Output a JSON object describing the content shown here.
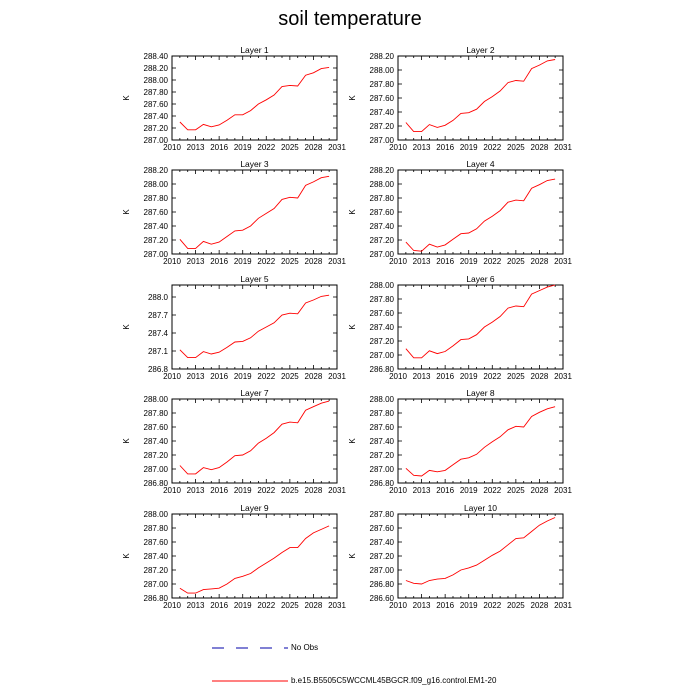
{
  "title": "soil temperature",
  "legend": {
    "obs_label": "No Obs",
    "model_label": "b.e15.B5505C5WCCML45BGCR.f09_g16.control.EM1-20",
    "model_color": "#ff0000",
    "obs_color": "#0000aa"
  },
  "chart_data": [
    {
      "type": "line",
      "title": "Layer 1",
      "ylabel": "K",
      "xlim": [
        2010,
        2031
      ],
      "xticks": [
        "2010",
        "2013",
        "2016",
        "2019",
        "2022",
        "2025",
        "2028",
        "2031"
      ],
      "ylim": [
        287.0,
        288.4
      ],
      "yticks": [
        "287.00",
        "287.20",
        "287.40",
        "287.60",
        "287.80",
        "288.00",
        "288.20",
        "288.40"
      ],
      "x": [
        2011,
        2012,
        2013,
        2014,
        2015,
        2016,
        2017,
        2018,
        2019,
        2020,
        2021,
        2022,
        2023,
        2024,
        2025,
        2026,
        2027,
        2028,
        2029,
        2030
      ],
      "series": [
        {
          "values": [
            287.3,
            287.17,
            287.17,
            287.26,
            287.22,
            287.25,
            287.33,
            287.42,
            287.42,
            287.49,
            287.6,
            287.67,
            287.75,
            287.89,
            287.91,
            287.9,
            288.08,
            288.12,
            288.19,
            288.21
          ]
        }
      ]
    },
    {
      "type": "line",
      "title": "Layer 2",
      "ylabel": "K",
      "xlim": [
        2010,
        2031
      ],
      "xticks": [
        "2010",
        "2013",
        "2016",
        "2019",
        "2022",
        "2025",
        "2028",
        "2031"
      ],
      "ylim": [
        287.0,
        288.2
      ],
      "yticks": [
        "287.00",
        "287.20",
        "287.40",
        "287.60",
        "287.80",
        "288.00",
        "288.20"
      ],
      "x": [
        2011,
        2012,
        2013,
        2014,
        2015,
        2016,
        2017,
        2018,
        2019,
        2020,
        2021,
        2022,
        2023,
        2024,
        2025,
        2026,
        2027,
        2028,
        2029,
        2030
      ],
      "series": [
        {
          "values": [
            287.25,
            287.12,
            287.12,
            287.22,
            287.18,
            287.21,
            287.28,
            287.38,
            287.39,
            287.44,
            287.55,
            287.62,
            287.7,
            287.82,
            287.85,
            287.84,
            288.02,
            288.07,
            288.13,
            288.15
          ]
        }
      ]
    },
    {
      "type": "line",
      "title": "Layer 3",
      "ylabel": "K",
      "xlim": [
        2010,
        2031
      ],
      "xticks": [
        "2010",
        "2013",
        "2016",
        "2019",
        "2022",
        "2025",
        "2028",
        "2031"
      ],
      "ylim": [
        287.0,
        288.2
      ],
      "yticks": [
        "287.00",
        "287.20",
        "287.40",
        "287.60",
        "287.80",
        "288.00",
        "288.20"
      ],
      "x": [
        2011,
        2012,
        2013,
        2014,
        2015,
        2016,
        2017,
        2018,
        2019,
        2020,
        2021,
        2022,
        2023,
        2024,
        2025,
        2026,
        2027,
        2028,
        2029,
        2030
      ],
      "series": [
        {
          "values": [
            287.21,
            287.08,
            287.08,
            287.18,
            287.14,
            287.17,
            287.25,
            287.33,
            287.34,
            287.4,
            287.51,
            287.58,
            287.65,
            287.78,
            287.81,
            287.8,
            287.98,
            288.03,
            288.09,
            288.11
          ]
        }
      ]
    },
    {
      "type": "line",
      "title": "Layer 4",
      "ylabel": "K",
      "xlim": [
        2010,
        2031
      ],
      "xticks": [
        "2010",
        "2013",
        "2016",
        "2019",
        "2022",
        "2025",
        "2028",
        "2031"
      ],
      "ylim": [
        287.0,
        288.2
      ],
      "yticks": [
        "287.00",
        "287.20",
        "287.40",
        "287.60",
        "287.80",
        "288.00",
        "288.20"
      ],
      "x": [
        2011,
        2012,
        2013,
        2014,
        2015,
        2016,
        2017,
        2018,
        2019,
        2020,
        2021,
        2022,
        2023,
        2024,
        2025,
        2026,
        2027,
        2028,
        2029,
        2030
      ],
      "series": [
        {
          "values": [
            287.17,
            287.05,
            287.04,
            287.14,
            287.1,
            287.13,
            287.21,
            287.29,
            287.3,
            287.36,
            287.47,
            287.54,
            287.62,
            287.74,
            287.77,
            287.76,
            287.94,
            287.99,
            288.05,
            288.07
          ]
        }
      ]
    },
    {
      "type": "line",
      "title": "Layer 5",
      "ylabel": "K",
      "xlim": [
        2010,
        2031
      ],
      "xticks": [
        "2010",
        "2013",
        "2016",
        "2019",
        "2022",
        "2025",
        "2028",
        "2031"
      ],
      "ylim": [
        286.8,
        288.2
      ],
      "yticks": [
        "286.8",
        "287.1",
        "287.4",
        "287.7",
        "288.0"
      ],
      "yticks_values": [
        286.8,
        287.1,
        287.4,
        287.7,
        288.0
      ],
      "x": [
        2011,
        2012,
        2013,
        2014,
        2015,
        2016,
        2017,
        2018,
        2019,
        2020,
        2021,
        2022,
        2023,
        2024,
        2025,
        2026,
        2027,
        2028,
        2029,
        2030
      ],
      "series": [
        {
          "values": [
            287.12,
            286.99,
            286.99,
            287.09,
            287.05,
            287.08,
            287.16,
            287.25,
            287.26,
            287.32,
            287.43,
            287.5,
            287.57,
            287.7,
            287.73,
            287.72,
            287.9,
            287.95,
            288.01,
            288.03
          ]
        }
      ]
    },
    {
      "type": "line",
      "title": "Layer 6",
      "ylabel": "K",
      "xlim": [
        2010,
        2031
      ],
      "xticks": [
        "2010",
        "2013",
        "2016",
        "2019",
        "2022",
        "2025",
        "2028",
        "2031"
      ],
      "ylim": [
        286.8,
        288.0
      ],
      "yticks": [
        "286.80",
        "287.00",
        "287.20",
        "287.40",
        "287.60",
        "287.80",
        "288.00"
      ],
      "x": [
        2011,
        2012,
        2013,
        2014,
        2015,
        2016,
        2017,
        2018,
        2019,
        2020,
        2021,
        2022,
        2023,
        2024,
        2025,
        2026,
        2027,
        2028,
        2029,
        2030
      ],
      "series": [
        {
          "values": [
            287.09,
            286.96,
            286.96,
            287.06,
            287.02,
            287.05,
            287.13,
            287.22,
            287.23,
            287.29,
            287.4,
            287.47,
            287.55,
            287.67,
            287.7,
            287.69,
            287.87,
            287.92,
            287.97,
            288.0
          ]
        }
      ]
    },
    {
      "type": "line",
      "title": "Layer 7",
      "ylabel": "K",
      "xlim": [
        2010,
        2031
      ],
      "xticks": [
        "2010",
        "2013",
        "2016",
        "2019",
        "2022",
        "2025",
        "2028",
        "2031"
      ],
      "ylim": [
        286.8,
        288.0
      ],
      "yticks": [
        "286.80",
        "287.00",
        "287.20",
        "287.40",
        "287.60",
        "287.80",
        "288.00"
      ],
      "x": [
        2011,
        2012,
        2013,
        2014,
        2015,
        2016,
        2017,
        2018,
        2019,
        2020,
        2021,
        2022,
        2023,
        2024,
        2025,
        2026,
        2027,
        2028,
        2029,
        2030
      ],
      "series": [
        {
          "values": [
            287.05,
            286.93,
            286.93,
            287.02,
            286.99,
            287.02,
            287.1,
            287.19,
            287.2,
            287.26,
            287.37,
            287.44,
            287.52,
            287.64,
            287.67,
            287.66,
            287.84,
            287.89,
            287.94,
            287.97
          ]
        }
      ]
    },
    {
      "type": "line",
      "title": "Layer 8",
      "ylabel": "K",
      "xlim": [
        2010,
        2031
      ],
      "xticks": [
        "2010",
        "2013",
        "2016",
        "2019",
        "2022",
        "2025",
        "2028",
        "2031"
      ],
      "ylim": [
        286.8,
        288.0
      ],
      "yticks": [
        "286.80",
        "287.00",
        "287.20",
        "287.40",
        "287.60",
        "287.80",
        "288.00"
      ],
      "x": [
        2011,
        2012,
        2013,
        2014,
        2015,
        2016,
        2017,
        2018,
        2019,
        2020,
        2021,
        2022,
        2023,
        2024,
        2025,
        2026,
        2027,
        2028,
        2029,
        2030
      ],
      "series": [
        {
          "values": [
            287.01,
            286.91,
            286.9,
            286.98,
            286.96,
            286.98,
            287.06,
            287.14,
            287.16,
            287.21,
            287.31,
            287.39,
            287.46,
            287.56,
            287.61,
            287.6,
            287.75,
            287.81,
            287.86,
            287.89
          ]
        }
      ]
    },
    {
      "type": "line",
      "title": "Layer 9",
      "ylabel": "K",
      "xlim": [
        2010,
        2031
      ],
      "xticks": [
        "2010",
        "2013",
        "2016",
        "2019",
        "2022",
        "2025",
        "2028",
        "2031"
      ],
      "ylim": [
        286.8,
        288.0
      ],
      "yticks": [
        "286.80",
        "287.00",
        "287.20",
        "287.40",
        "287.60",
        "287.80",
        "288.00"
      ],
      "x": [
        2011,
        2012,
        2013,
        2014,
        2015,
        2016,
        2017,
        2018,
        2019,
        2020,
        2021,
        2022,
        2023,
        2024,
        2025,
        2026,
        2027,
        2028,
        2029,
        2030
      ],
      "series": [
        {
          "values": [
            286.94,
            286.87,
            286.87,
            286.92,
            286.93,
            286.94,
            287.0,
            287.08,
            287.11,
            287.15,
            287.23,
            287.3,
            287.37,
            287.45,
            287.52,
            287.52,
            287.65,
            287.73,
            287.78,
            287.83
          ]
        }
      ]
    },
    {
      "type": "line",
      "title": "Layer 10",
      "ylabel": "K",
      "xlim": [
        2010,
        2031
      ],
      "xticks": [
        "2010",
        "2013",
        "2016",
        "2019",
        "2022",
        "2025",
        "2028",
        "2031"
      ],
      "ylim": [
        286.6,
        287.8
      ],
      "yticks": [
        "286.60",
        "286.80",
        "287.00",
        "287.20",
        "287.40",
        "287.60",
        "287.80"
      ],
      "x": [
        2011,
        2012,
        2013,
        2014,
        2015,
        2016,
        2017,
        2018,
        2019,
        2020,
        2021,
        2022,
        2023,
        2024,
        2025,
        2026,
        2027,
        2028,
        2029,
        2030
      ],
      "series": [
        {
          "values": [
            286.85,
            286.81,
            286.8,
            286.85,
            286.87,
            286.88,
            286.93,
            287.0,
            287.03,
            287.07,
            287.14,
            287.21,
            287.27,
            287.36,
            287.45,
            287.46,
            287.55,
            287.64,
            287.7,
            287.75
          ]
        }
      ]
    }
  ]
}
